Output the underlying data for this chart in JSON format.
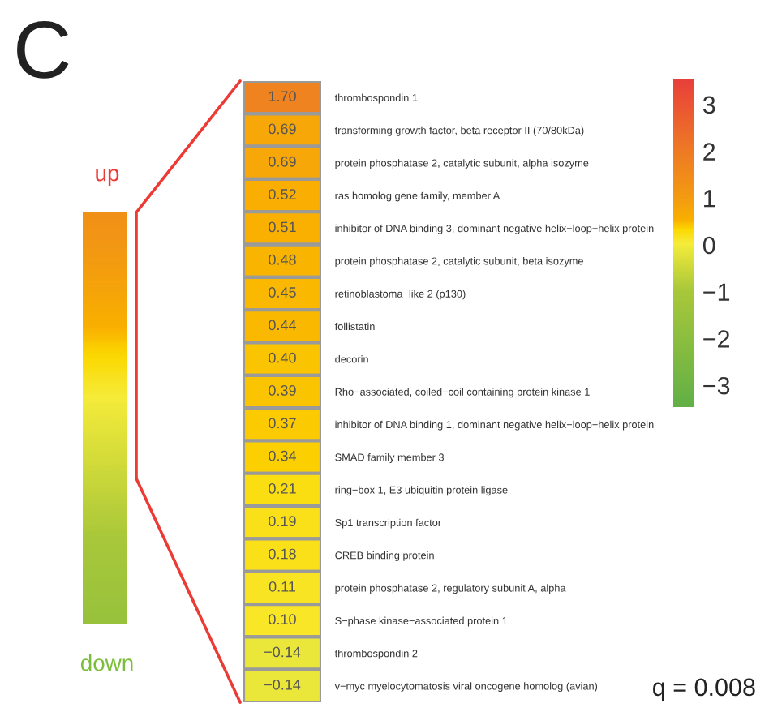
{
  "chart_data": {
    "type": "heatmap",
    "categories": [
      null
    ],
    "y_categories": [
      "thrombospondin 1",
      "transforming growth factor, beta receptor II (70/80kDa)",
      "protein phosphatase 2, catalytic subunit, alpha isozyme",
      "ras homolog gene family, member A",
      "inhibitor of DNA binding 3, dominant negative helix−loop−helix protein",
      "protein phosphatase 2, catalytic subunit, beta isozyme",
      "retinoblastoma−like 2 (p130)",
      "follistatin",
      "decorin",
      "Rho−associated, coiled−coil containing protein kinase 1",
      "inhibitor of DNA binding 1, dominant negative helix−loop−helix protein",
      "SMAD family member 3",
      "ring−box 1, E3 ubiquitin protein ligase",
      "Sp1 transcription factor",
      "CREB binding protein",
      "protein phosphatase 2, regulatory subunit A, alpha",
      "S−phase kinase−associated protein 1",
      "thrombospondin 2",
      "v−myc myelocytomatosis viral oncogene homolog (avian)"
    ],
    "cells": [
      [
        1.7
      ],
      [
        0.69
      ],
      [
        0.69
      ],
      [
        0.52
      ],
      [
        0.51
      ],
      [
        0.48
      ],
      [
        0.45
      ],
      [
        0.44
      ],
      [
        0.4
      ],
      [
        0.39
      ],
      [
        0.37
      ],
      [
        0.34
      ],
      [
        0.21
      ],
      [
        0.19
      ],
      [
        0.18
      ],
      [
        0.11
      ],
      [
        0.1
      ],
      [
        -0.14
      ],
      [
        -0.14
      ]
    ],
    "cell_labels": [
      [
        "1.70"
      ],
      [
        "0.69"
      ],
      [
        "0.69"
      ],
      [
        "0.52"
      ],
      [
        "0.51"
      ],
      [
        "0.48"
      ],
      [
        "0.45"
      ],
      [
        "0.44"
      ],
      [
        "0.40"
      ],
      [
        "0.39"
      ],
      [
        "0.37"
      ],
      [
        "0.34"
      ],
      [
        "0.21"
      ],
      [
        "0.19"
      ],
      [
        "0.18"
      ],
      [
        "0.11"
      ],
      [
        "0.10"
      ],
      [
        "−0.14"
      ],
      [
        "−0.14"
      ]
    ],
    "clim": [
      -3.5,
      3.5
    ],
    "cticks": [
      {
        "value": 3,
        "label": "3"
      },
      {
        "value": 2,
        "label": "2"
      },
      {
        "value": 1,
        "label": "1"
      },
      {
        "value": 0,
        "label": "0"
      },
      {
        "value": -1,
        "label": "−1"
      },
      {
        "value": -2,
        "label": "−2"
      },
      {
        "value": -3,
        "label": "−3"
      }
    ],
    "tick_labels": "y",
    "annotations": [
      "C",
      "up",
      "down",
      "q = 0.008"
    ]
  }
}
